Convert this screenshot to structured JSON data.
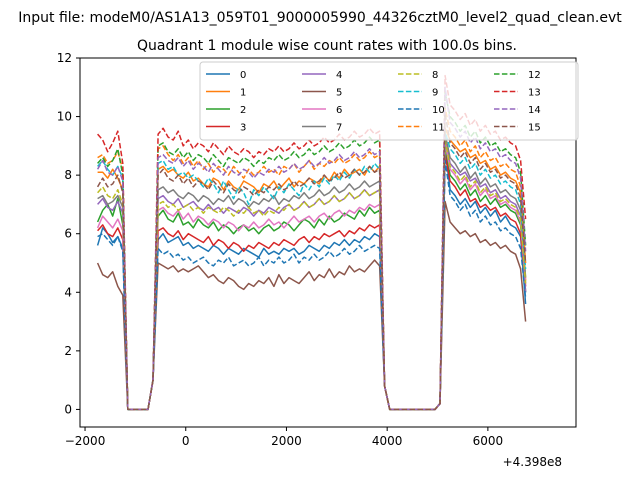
{
  "suptitle": "Input file: modeM0/AS1A13_059T01_9000005990_44326cztM0_level2_quad_clean.evt",
  "chart_data": {
    "type": "line",
    "title": "Quadrant 1 module wise count rates with 100.0s bins.",
    "xlabel": "",
    "ylabel": "",
    "x_offset_label": "+4.398e8",
    "xlim": [
      -2100,
      7750
    ],
    "ylim": [
      -0.6,
      12
    ],
    "xticks": [
      -2000,
      0,
      2000,
      4000,
      6000
    ],
    "xtick_labels": [
      "−2000",
      "0",
      "2000",
      "4000",
      "6000"
    ],
    "yticks": [
      0,
      2,
      4,
      6,
      8,
      10,
      12
    ],
    "ytick_labels": [
      "0",
      "2",
      "4",
      "6",
      "8",
      "10",
      "12"
    ],
    "grid": false,
    "legend": {
      "placement": "top-center",
      "columns": 4
    },
    "x_start": -1750,
    "bin_width": 100,
    "series": [
      {
        "name": "0",
        "color": "#1f77b4",
        "dash": "solid",
        "orbit1": [
          5.8,
          6.0,
          5.7,
          5.8,
          5.9,
          5.6,
          5.7,
          5.5,
          5.6,
          5.5,
          5.4,
          5.6,
          5.5,
          5.3,
          5.5,
          5.4,
          5.3,
          5.5,
          5.4,
          5.3,
          5.2,
          5.5,
          5.3,
          5.4,
          5.3,
          5.5,
          5.4,
          5.5,
          5.3,
          5.4,
          5.6,
          5.5,
          5.4,
          5.6,
          5.5,
          5.7,
          5.6,
          5.8,
          5.6,
          5.8,
          5.7,
          5.9,
          5.8,
          6.0,
          5.9
        ],
        "orbit2": [
          8.9,
          7.5,
          7.3,
          7.0,
          7.2,
          6.9,
          7.1,
          6.7,
          6.9,
          6.6,
          6.8,
          6.4,
          6.6,
          6.3,
          6.2,
          5.9
        ]
      },
      {
        "name": "1",
        "color": "#ff7f0e",
        "dash": "solid",
        "orbit1": [
          8.2,
          8.3,
          8.1,
          8.2,
          8.0,
          7.9,
          8.1,
          7.8,
          7.9,
          7.7,
          7.6,
          7.9,
          7.8,
          7.5,
          7.8,
          7.6,
          7.5,
          7.8,
          7.7,
          7.6,
          7.4,
          7.7,
          7.6,
          7.8,
          7.5,
          7.7,
          7.9,
          7.6,
          7.8,
          7.7,
          7.9,
          7.8,
          7.7,
          8.0,
          7.8,
          8.1,
          7.9,
          8.2,
          8.0,
          8.1,
          8.2,
          8.0,
          8.3,
          8.1,
          8.3
        ],
        "orbit2": [
          9.6,
          9.2,
          9.0,
          8.8,
          8.9,
          8.6,
          8.7,
          8.4,
          8.5,
          8.2,
          8.3,
          8.0,
          8.1,
          7.9,
          7.8,
          7.4
        ]
      },
      {
        "name": "2",
        "color": "#2ca02c",
        "dash": "solid",
        "orbit1": [
          6.6,
          6.8,
          6.5,
          6.4,
          6.7,
          6.3,
          6.4,
          6.2,
          6.5,
          6.3,
          6.2,
          6.4,
          6.1,
          6.3,
          6.2,
          6.0,
          6.2,
          6.3,
          6.1,
          6.2,
          6.0,
          6.2,
          6.3,
          6.1,
          6.2,
          6.4,
          6.3,
          6.1,
          6.3,
          6.5,
          6.4,
          6.2,
          6.5,
          6.3,
          6.6,
          6.4,
          6.5,
          6.7,
          6.6,
          6.5,
          6.8,
          6.6,
          6.9,
          6.7,
          6.8
        ],
        "orbit2": [
          9.0,
          8.0,
          7.8,
          7.5,
          7.7,
          7.3,
          7.5,
          7.1,
          7.3,
          7.0,
          7.2,
          6.9,
          7.0,
          6.8,
          6.7,
          6.3
        ]
      },
      {
        "name": "3",
        "color": "#d62728",
        "dash": "solid",
        "orbit1": [
          6.1,
          6.2,
          6.0,
          5.9,
          6.1,
          5.8,
          6.0,
          5.9,
          5.8,
          5.7,
          5.9,
          5.6,
          5.8,
          5.7,
          5.5,
          5.7,
          5.6,
          5.4,
          5.6,
          5.5,
          5.7,
          5.6,
          5.5,
          5.7,
          5.6,
          5.8,
          5.7,
          5.6,
          5.8,
          5.9,
          5.7,
          5.9,
          5.8,
          6.0,
          5.9,
          6.0,
          6.1,
          5.9,
          6.1,
          6.0,
          6.2,
          6.1,
          6.3,
          6.2,
          6.3
        ],
        "orbit2": [
          8.7,
          7.8,
          7.6,
          7.3,
          7.5,
          7.1,
          7.2,
          6.9,
          7.0,
          6.8,
          6.9,
          6.6,
          6.7,
          6.5,
          6.4,
          6.0
        ]
      },
      {
        "name": "4",
        "color": "#9467bd",
        "dash": "solid",
        "orbit1": [
          7.2,
          7.3,
          7.1,
          7.0,
          7.2,
          6.9,
          7.0,
          7.1,
          6.9,
          6.8,
          7.0,
          6.8,
          6.9,
          6.7,
          6.9,
          6.8,
          6.7,
          6.9,
          6.8,
          6.6,
          6.8,
          6.7,
          6.9,
          6.8,
          6.7,
          6.9,
          7.0,
          6.8,
          6.9,
          7.1,
          6.9,
          7.0,
          7.2,
          7.0,
          7.1,
          7.3,
          7.1,
          7.2,
          7.4,
          7.2,
          7.3,
          7.5,
          7.3,
          7.4,
          7.5
        ],
        "orbit2": [
          9.3,
          8.4,
          8.2,
          8.0,
          8.1,
          7.8,
          7.9,
          7.6,
          7.7,
          7.4,
          7.5,
          7.2,
          7.3,
          7.1,
          7.0,
          6.6
        ]
      },
      {
        "name": "5",
        "color": "#8c564b",
        "dash": "solid",
        "orbit1": [
          5.0,
          4.9,
          4.8,
          4.9,
          4.7,
          4.8,
          4.7,
          4.8,
          4.9,
          4.7,
          4.5,
          4.6,
          4.4,
          4.3,
          4.5,
          4.4,
          4.2,
          4.1,
          4.3,
          4.2,
          4.4,
          4.3,
          4.5,
          4.2,
          4.6,
          4.3,
          4.5,
          4.4,
          4.3,
          4.5,
          4.7,
          4.4,
          4.6,
          4.5,
          4.8,
          4.5,
          4.7,
          4.6,
          4.9,
          4.7,
          4.8,
          4.7,
          4.9,
          5.1,
          4.9
        ],
        "orbit2": [
          7.1,
          6.4,
          6.2,
          6.0,
          6.1,
          5.9,
          6.0,
          5.7,
          5.8,
          5.6,
          5.7,
          5.5,
          5.6,
          5.4,
          5.3,
          4.8
        ]
      },
      {
        "name": "6",
        "color": "#e377c2",
        "dash": "solid",
        "orbit1": [
          6.8,
          6.9,
          6.7,
          6.6,
          6.8,
          6.5,
          6.7,
          6.4,
          6.6,
          6.5,
          6.3,
          6.5,
          6.4,
          6.2,
          6.4,
          6.3,
          6.1,
          6.3,
          6.2,
          6.4,
          6.2,
          6.3,
          6.5,
          6.3,
          6.4,
          6.2,
          6.4,
          6.6,
          6.4,
          6.5,
          6.6,
          6.4,
          6.6,
          6.7,
          6.5,
          6.7,
          6.8,
          6.6,
          6.8,
          6.7,
          6.9,
          6.8,
          7.0,
          6.9,
          7.0
        ],
        "orbit2": [
          9.1,
          8.2,
          8.0,
          7.7,
          7.9,
          7.5,
          7.7,
          7.3,
          7.5,
          7.2,
          7.3,
          7.0,
          7.1,
          6.9,
          6.8,
          6.4
        ]
      },
      {
        "name": "7",
        "color": "#7f7f7f",
        "dash": "solid",
        "orbit1": [
          7.5,
          7.6,
          7.4,
          7.5,
          7.3,
          7.2,
          7.4,
          7.3,
          7.1,
          7.3,
          7.2,
          7.0,
          7.2,
          7.1,
          7.3,
          7.0,
          7.2,
          7.1,
          6.9,
          7.1,
          7.0,
          7.2,
          7.1,
          7.3,
          7.0,
          7.2,
          7.1,
          7.3,
          7.2,
          7.4,
          7.2,
          7.3,
          7.5,
          7.3,
          7.4,
          7.6,
          7.4,
          7.5,
          7.7,
          7.5,
          7.6,
          7.8,
          7.6,
          7.7,
          7.8
        ],
        "orbit2": [
          9.4,
          8.6,
          8.4,
          8.1,
          8.3,
          7.9,
          8.1,
          7.7,
          7.9,
          7.6,
          7.7,
          7.4,
          7.5,
          7.3,
          7.2,
          6.8
        ]
      },
      {
        "name": "8",
        "color": "#bcbd22",
        "dash": "dashed",
        "orbit1": [
          7.0,
          7.1,
          6.9,
          7.0,
          6.8,
          6.9,
          7.0,
          6.8,
          6.9,
          6.7,
          6.9,
          6.8,
          6.7,
          6.9,
          6.8,
          6.6,
          6.8,
          6.7,
          6.9,
          6.7,
          6.8,
          6.6,
          6.8,
          6.7,
          6.9,
          6.8,
          7.0,
          6.8,
          6.9,
          7.1,
          6.9,
          7.0,
          7.2,
          7.0,
          7.1,
          7.3,
          7.1,
          7.2,
          7.4,
          7.2,
          7.3,
          7.5,
          7.3,
          7.4,
          7.5
        ],
        "orbit2": [
          9.2,
          8.3,
          8.1,
          7.8,
          8.0,
          7.6,
          7.8,
          7.4,
          7.6,
          7.3,
          7.4,
          7.1,
          7.2,
          7.0,
          6.9,
          6.5
        ]
      },
      {
        "name": "9",
        "color": "#17becf",
        "dash": "dashed",
        "orbit1": [
          8.4,
          8.5,
          8.2,
          8.3,
          8.0,
          8.1,
          7.9,
          8.0,
          7.8,
          7.6,
          7.9,
          7.7,
          7.4,
          7.8,
          7.5,
          7.2,
          7.6,
          7.4,
          7.0,
          7.5,
          7.3,
          7.6,
          7.4,
          7.2,
          7.6,
          7.4,
          7.7,
          7.5,
          7.3,
          7.7,
          7.5,
          7.8,
          7.6,
          7.9,
          7.7,
          8.0,
          7.8,
          8.1,
          7.9,
          8.2,
          8.0,
          8.3,
          8.1,
          8.4,
          8.2
        ],
        "orbit2": [
          9.5,
          8.9,
          8.7,
          8.4,
          8.6,
          8.2,
          8.4,
          8.0,
          8.2,
          7.9,
          8.0,
          7.7,
          7.8,
          7.6,
          7.5,
          7.0
        ]
      },
      {
        "name": "10",
        "color": "#1f77b4",
        "dash": "dashed",
        "orbit1": [
          5.5,
          5.3,
          5.4,
          5.2,
          5.3,
          5.1,
          5.2,
          5.0,
          5.1,
          5.2,
          5.0,
          4.9,
          5.1,
          5.0,
          5.2,
          4.9,
          5.0,
          5.1,
          4.9,
          5.0,
          5.2,
          4.9,
          5.1,
          5.0,
          5.2,
          5.0,
          5.1,
          5.3,
          5.0,
          5.2,
          5.1,
          5.3,
          5.1,
          5.2,
          5.4,
          5.2,
          5.3,
          5.5,
          5.3,
          5.4,
          5.6,
          5.4,
          5.5,
          5.6,
          5.5
        ],
        "orbit2": [
          8.5,
          7.3,
          7.1,
          6.8,
          7.0,
          6.6,
          6.8,
          6.4,
          6.6,
          6.3,
          6.4,
          6.1,
          6.2,
          6.0,
          5.9,
          5.5
        ]
      },
      {
        "name": "11",
        "color": "#ff7f0e",
        "dash": "dashed",
        "orbit1": [
          8.9,
          9.0,
          8.7,
          8.5,
          8.7,
          8.4,
          8.6,
          8.3,
          8.5,
          8.2,
          8.4,
          8.1,
          8.3,
          8.2,
          8.0,
          8.3,
          8.1,
          7.9,
          8.2,
          8.0,
          8.1,
          8.3,
          8.1,
          8.2,
          8.0,
          8.3,
          8.2,
          8.4,
          8.1,
          8.3,
          8.5,
          8.2,
          8.4,
          8.3,
          8.5,
          8.4,
          8.6,
          8.4,
          8.5,
          8.7,
          8.5,
          8.6,
          8.8,
          8.6,
          8.7
        ],
        "orbit2": [
          10.3,
          9.5,
          9.3,
          9.0,
          9.2,
          8.8,
          9.0,
          8.6,
          8.8,
          8.5,
          8.6,
          8.3,
          8.4,
          8.2,
          8.1,
          7.6
        ]
      },
      {
        "name": "12",
        "color": "#2ca02c",
        "dash": "dashed",
        "orbit1": [
          9.0,
          9.1,
          8.8,
          8.7,
          8.9,
          8.6,
          8.8,
          8.5,
          8.7,
          8.6,
          8.4,
          8.7,
          8.5,
          8.3,
          8.6,
          8.5,
          8.4,
          8.6,
          8.5,
          8.3,
          8.5,
          8.4,
          8.6,
          8.5,
          8.7,
          8.5,
          8.6,
          8.8,
          8.6,
          8.7,
          8.9,
          8.7,
          8.8,
          9.0,
          8.8,
          8.9,
          9.1,
          8.9,
          9.0,
          9.2,
          9.0,
          9.1,
          9.3,
          9.1,
          9.2
        ],
        "orbit2": [
          10.8,
          10.0,
          9.8,
          9.5,
          9.7,
          9.3,
          9.5,
          9.1,
          9.3,
          9.0,
          9.1,
          8.8,
          8.9,
          8.7,
          8.6,
          8.1
        ]
      },
      {
        "name": "13",
        "color": "#d62728",
        "dash": "dashed",
        "orbit1": [
          9.4,
          9.6,
          9.3,
          9.2,
          9.5,
          9.0,
          9.2,
          8.9,
          9.1,
          9.0,
          8.8,
          9.1,
          8.9,
          8.7,
          9.0,
          8.8,
          8.7,
          8.9,
          8.8,
          8.6,
          8.8,
          8.7,
          8.9,
          8.8,
          9.0,
          8.8,
          8.9,
          9.1,
          8.9,
          9.0,
          9.2,
          9.0,
          9.1,
          9.3,
          9.1,
          9.2,
          9.4,
          9.2,
          9.3,
          9.5,
          9.3,
          9.4,
          9.6,
          9.4,
          9.5
        ],
        "orbit2": [
          11.4,
          10.4,
          10.2,
          9.9,
          10.1,
          9.7,
          9.9,
          9.5,
          9.7,
          9.4,
          9.5,
          9.2,
          9.3,
          9.1,
          9.0,
          8.5
        ]
      },
      {
        "name": "14",
        "color": "#9467bd",
        "dash": "dashed",
        "orbit1": [
          8.6,
          8.7,
          8.5,
          8.4,
          8.6,
          8.3,
          8.5,
          8.2,
          8.4,
          8.3,
          8.1,
          8.4,
          8.2,
          8.0,
          8.3,
          8.1,
          8.0,
          8.2,
          8.1,
          7.9,
          8.1,
          8.0,
          8.2,
          8.1,
          8.3,
          8.1,
          8.2,
          8.4,
          8.2,
          8.3,
          8.5,
          8.3,
          8.4,
          8.6,
          8.4,
          8.5,
          8.7,
          8.5,
          8.6,
          8.8,
          8.6,
          8.7,
          8.9,
          8.7,
          8.8
        ],
        "orbit2": [
          11.0,
          9.8,
          9.6,
          9.3,
          9.5,
          9.1,
          9.3,
          8.9,
          9.1,
          8.8,
          8.9,
          8.6,
          8.7,
          8.5,
          8.4,
          7.9
        ]
      },
      {
        "name": "15",
        "color": "#8c564b",
        "dash": "dashed",
        "orbit1": [
          8.0,
          8.2,
          7.9,
          7.8,
          8.0,
          7.7,
          7.9,
          7.6,
          7.8,
          7.7,
          7.5,
          7.8,
          7.6,
          7.4,
          7.7,
          7.5,
          7.4,
          7.6,
          7.5,
          7.3,
          7.5,
          7.4,
          7.6,
          7.5,
          7.7,
          7.5,
          7.6,
          7.8,
          7.6,
          7.7,
          7.9,
          7.7,
          7.8,
          8.0,
          7.8,
          7.9,
          8.1,
          7.9,
          8.0,
          8.2,
          8.0,
          8.1,
          8.3,
          8.1,
          8.2
        ],
        "orbit2": [
          10.1,
          9.1,
          8.9,
          8.6,
          8.8,
          8.4,
          8.6,
          8.2,
          8.4,
          8.1,
          8.2,
          7.9,
          8.0,
          7.8,
          7.7,
          7.2
        ]
      }
    ],
    "orbit1_prefix": [
      [
        5.6,
        6.2,
        6.0,
        5.7,
        5.9,
        5.5
      ],
      [
        8.1,
        8.1,
        7.9,
        8.2,
        7.9,
        7.5
      ],
      [
        6.4,
        6.8,
        7.0,
        6.6,
        7.2,
        6.3
      ],
      [
        6.1,
        6.3,
        6.0,
        5.9,
        6.2,
        5.8
      ],
      [
        7.0,
        7.2,
        6.9,
        6.8,
        7.1,
        6.7
      ],
      [
        5.0,
        4.6,
        4.5,
        4.7,
        4.2,
        3.9
      ],
      [
        6.2,
        6.6,
        6.4,
        6.2,
        6.5,
        6.1
      ],
      [
        7.2,
        7.3,
        7.0,
        7.1,
        7.3,
        6.9
      ],
      [
        7.4,
        7.6,
        7.3,
        7.2,
        7.5,
        7.0
      ],
      [
        8.3,
        8.5,
        8.2,
        8.0,
        8.3,
        7.9
      ],
      [
        5.9,
        6.0,
        5.8,
        5.6,
        5.9,
        5.4
      ],
      [
        8.6,
        8.7,
        8.4,
        8.5,
        8.8,
        8.2
      ],
      [
        8.4,
        8.6,
        8.3,
        8.5,
        8.9,
        8.0
      ],
      [
        9.4,
        9.2,
        8.8,
        9.1,
        9.5,
        8.4
      ],
      [
        8.2,
        8.5,
        8.1,
        8.0,
        8.3,
        7.8
      ],
      [
        7.6,
        7.9,
        7.6,
        7.7,
        8.0,
        7.4
      ]
    ],
    "orbit2_end": [
      3.6,
      4.4,
      4.0,
      4.2,
      4.0,
      3.0,
      4.3,
      4.5,
      4.3,
      4.8,
      3.8,
      5.0,
      5.6,
      6.5,
      5.4,
      5.0
    ]
  }
}
